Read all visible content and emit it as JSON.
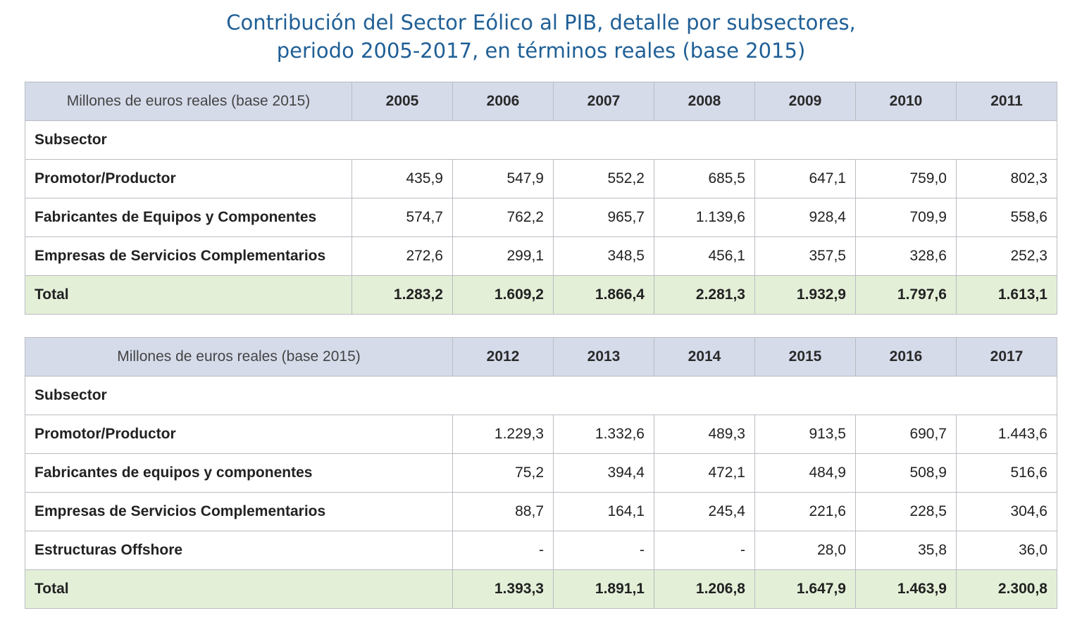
{
  "title": {
    "line1": "Contribución del Sector Eólico al PIB, detalle por subsectores,",
    "line2": "periodo 2005-2017, en términos reales (base 2015)"
  },
  "table1": {
    "unit_label": "Millones de euros reales (base 2015)",
    "years": [
      "2005",
      "2006",
      "2007",
      "2008",
      "2009",
      "2010",
      "2011"
    ],
    "subsector_label": "Subsector",
    "rows": [
      {
        "label": "Promotor/Productor",
        "values": [
          "435,9",
          "547,9",
          "552,2",
          "685,5",
          "647,1",
          "759,0",
          "802,3"
        ]
      },
      {
        "label": "Fabricantes de Equipos y Componentes",
        "values": [
          "574,7",
          "762,2",
          "965,7",
          "1.139,6",
          "928,4",
          "709,9",
          "558,6"
        ]
      },
      {
        "label": "Empresas de Servicios Complementarios",
        "values": [
          "272,6",
          "299,1",
          "348,5",
          "456,1",
          "357,5",
          "328,6",
          "252,3"
        ]
      }
    ],
    "total": {
      "label": "Total",
      "values": [
        "1.283,2",
        "1.609,2",
        "1.866,4",
        "2.281,3",
        "1.932,9",
        "1.797,6",
        "1.613,1"
      ]
    }
  },
  "table2": {
    "unit_label": "Millones de euros reales (base 2015)",
    "years": [
      "2012",
      "2013",
      "2014",
      "2015",
      "2016",
      "2017"
    ],
    "subsector_label": "Subsector",
    "rows": [
      {
        "label": "Promotor/Productor",
        "values": [
          "1.229,3",
          "1.332,6",
          "489,3",
          "913,5",
          "690,7",
          "1.443,6"
        ]
      },
      {
        "label": "Fabricantes de equipos y componentes",
        "values": [
          "75,2",
          "394,4",
          "472,1",
          "484,9",
          "508,9",
          "516,6"
        ]
      },
      {
        "label": "Empresas de Servicios Complementarios",
        "values": [
          "88,7",
          "164,1",
          "245,4",
          "221,6",
          "228,5",
          "304,6"
        ]
      },
      {
        "label": "Estructuras Offshore",
        "values": [
          "-",
          "-",
          "-",
          "28,0",
          "35,8",
          "36,0"
        ]
      }
    ],
    "total": {
      "label": "Total",
      "values": [
        "1.393,3",
        "1.891,1",
        "1.206,8",
        "1.647,9",
        "1.463,9",
        "2.300,8"
      ]
    }
  }
}
